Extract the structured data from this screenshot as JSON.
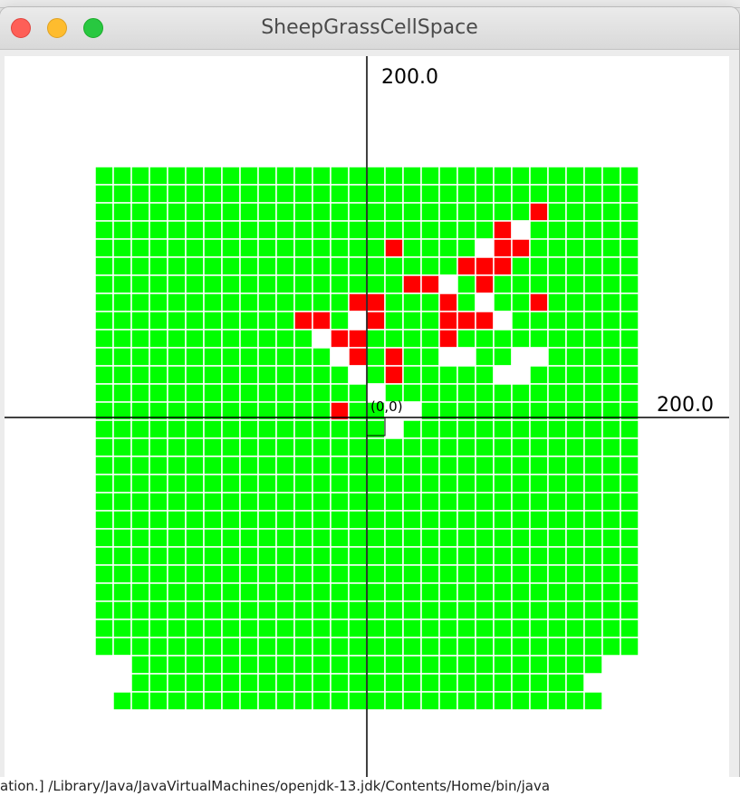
{
  "window": {
    "title": "SheepGrassCellSpace",
    "buttons": [
      "close",
      "minimize",
      "maximize"
    ]
  },
  "background_text": "ation.] /Library/Java/JavaVirtualMachines/openjdk-13.jdk/Contents/Home/bin/java",
  "axes": {
    "y_max_label": "200.0",
    "x_max_label": "200.0",
    "origin_label": "(0,0)"
  },
  "colors": {
    "grass": "#00ff00",
    "sheep": "#ff0000",
    "empty": "#ffffff",
    "grid": "#ffffff",
    "axis": "#000000"
  },
  "grid": {
    "cols": 30,
    "rows": 30,
    "legend": "rows listed top to bottom; G = grass, S = sheep, . = empty, space = no cell",
    "cells": [
      "GGGGGGGGGGGGGGGGGGGGGGGGGGGGGG",
      "GGGGGGGGGGGGGGGGGGGGGGGGGGGGGG",
      "GGGGGGGGGGGGGGGGGGGGGGGGSGGGGG",
      "GGGGGGGGGGGGGGGGGGGGGGS.GGGGGG",
      "GGGGGGGGGGGGGGGGGGGGG.SSGGGGGG",
      "GGGGGGGGGGGGGGGGGGGGSSSGGGGGGG",
      "GGGGGGGGGGGGGGGGGGGSS.GSGSGGGG",
      "GGGGGGGGGGGGGGGGGGGGGGSGGGGGGG",
      "GGGGGGGGGGGGGGGGGGGGGG..GSGGGG",
      "GGGGGGGGGGGGGGGGGGGGGGGGGGGGGG",
      "GGGGGGGGGGGGGGGGGGGGGGGGGGGGGG",
      "GGGGGGGGGGGGGGGGGGGGGGGGGGGGGG",
      "GGGGGGGGGGGGGGGGGGGGGGGGGGGGGG",
      "GGGGGGGGGGGGGGGGGGGGGGGGGGGGGG",
      "GGGGGGGGGGGGGGGGGGGGGGGGGGGGGG",
      "GGGGGGGGGGGGGGGGGGGGGGGGGGGGGG",
      "GGGGGGGGGGGGGGGGGGGGGGGGGGGGGG",
      "GGGGGGGGGGGGGGGGGGGGGGGGGGGGGG",
      "GGGGGGGGGGGGGGGGGGGGGGGGGGGGGG",
      "GGGGGGGGGGGGGGGGGGGGGGGGGGGGGG",
      "GGGGGGGGGGGGGGGGGGGGGGGGGGGGGG",
      "GGGGGGGGGGGGGGGGGGGGGGGGGGGGGG",
      "GGGGGGGGGGGGGGGGGGGGGGGGGGGGGG",
      "GGGGGGGGGGGGGGGGGGGGGGGGGGGGGG",
      "GGGGGGGGGGGGGGGGGGGGGGGGGGGGGG",
      "GGGGGGGGGGGGGGGGGGGGGGGGGGGGGG",
      "GGGGGGGGGGGGGGGGGGGGGGGGGGGGGG",
      " .GGGGGGGGGGGGGGGGGGGGGGGGGG  ",
      "  GGGGGGGGGGGGGGGGGGGGGGGGG   ",
      " GGGGGGGGGGGGGGGGGGGGGGGGGGG  "
    ],
    "overrides": [
      {
        "row": 4,
        "col": 16,
        "state": "S"
      },
      {
        "row": 6,
        "col": 17,
        "state": "S"
      },
      {
        "row": 6,
        "col": 18,
        "state": "S"
      },
      {
        "row": 6,
        "col": 19,
        "state": "."
      },
      {
        "row": 6,
        "col": 20,
        "state": "G"
      },
      {
        "row": 6,
        "col": 21,
        "state": "S"
      },
      {
        "row": 6,
        "col": 22,
        "state": "G"
      },
      {
        "row": 6,
        "col": 23,
        "state": "G"
      },
      {
        "row": 6,
        "col": 24,
        "state": "G"
      },
      {
        "row": 6,
        "col": 25,
        "state": "G"
      },
      {
        "row": 7,
        "col": 14,
        "state": "S"
      },
      {
        "row": 7,
        "col": 15,
        "state": "S"
      },
      {
        "row": 7,
        "col": 19,
        "state": "S"
      },
      {
        "row": 7,
        "col": 21,
        "state": "."
      },
      {
        "row": 7,
        "col": 22,
        "state": "G"
      },
      {
        "row": 7,
        "col": 23,
        "state": "G"
      },
      {
        "row": 7,
        "col": 24,
        "state": "S"
      },
      {
        "row": 8,
        "col": 11,
        "state": "S"
      },
      {
        "row": 8,
        "col": 12,
        "state": "S"
      },
      {
        "row": 8,
        "col": 14,
        "state": "."
      },
      {
        "row": 8,
        "col": 15,
        "state": "S"
      },
      {
        "row": 8,
        "col": 19,
        "state": "S"
      },
      {
        "row": 8,
        "col": 20,
        "state": "S"
      },
      {
        "row": 8,
        "col": 21,
        "state": "S"
      },
      {
        "row": 8,
        "col": 22,
        "state": "."
      },
      {
        "row": 8,
        "col": 23,
        "state": "G"
      },
      {
        "row": 8,
        "col": 24,
        "state": "G"
      },
      {
        "row": 8,
        "col": 25,
        "state": "G"
      },
      {
        "row": 9,
        "col": 12,
        "state": "."
      },
      {
        "row": 9,
        "col": 13,
        "state": "S"
      },
      {
        "row": 9,
        "col": 14,
        "state": "S"
      },
      {
        "row": 9,
        "col": 19,
        "state": "S"
      },
      {
        "row": 9,
        "col": 20,
        "state": "G"
      },
      {
        "row": 10,
        "col": 13,
        "state": "."
      },
      {
        "row": 10,
        "col": 14,
        "state": "S"
      },
      {
        "row": 10,
        "col": 16,
        "state": "S"
      },
      {
        "row": 10,
        "col": 19,
        "state": "."
      },
      {
        "row": 10,
        "col": 20,
        "state": "."
      },
      {
        "row": 10,
        "col": 23,
        "state": "."
      },
      {
        "row": 10,
        "col": 24,
        "state": "."
      },
      {
        "row": 11,
        "col": 14,
        "state": "."
      },
      {
        "row": 11,
        "col": 16,
        "state": "S"
      },
      {
        "row": 11,
        "col": 22,
        "state": "."
      },
      {
        "row": 11,
        "col": 23,
        "state": "."
      },
      {
        "row": 12,
        "col": 15,
        "state": "."
      },
      {
        "row": 13,
        "col": 13,
        "state": "S"
      },
      {
        "row": 13,
        "col": 16,
        "state": "."
      },
      {
        "row": 13,
        "col": 17,
        "state": "."
      },
      {
        "row": 14,
        "col": 16,
        "state": "."
      }
    ]
  }
}
